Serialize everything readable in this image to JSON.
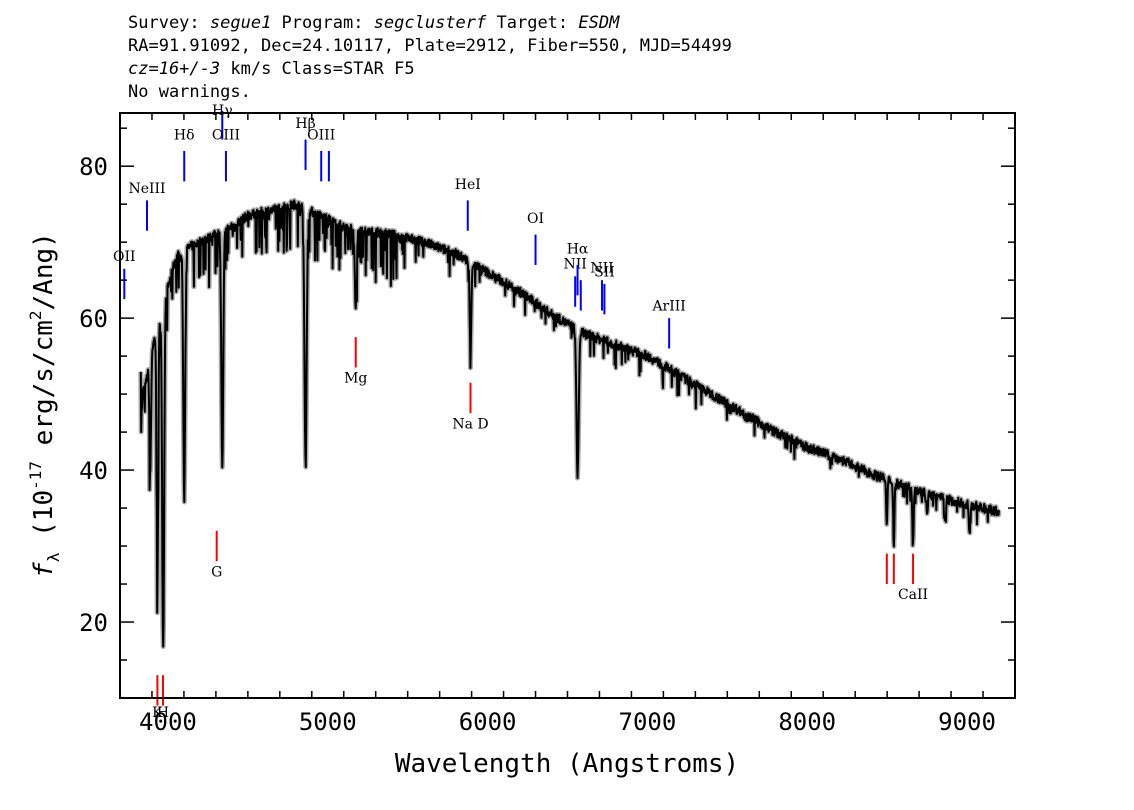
{
  "header": {
    "survey_label": "Survey: ",
    "survey": "segue1",
    "program_label": " Program: ",
    "program": "segclusterf",
    "target_label": " Target: ",
    "target": "ESDM",
    "line2": "RA=91.91092, Dec=24.10117, Plate=2912, Fiber=550, MJD=54499",
    "cz": "cz=16+/-3",
    "cz_rest": " km/s Class=STAR F5",
    "line4": "No warnings."
  },
  "chart_data": {
    "type": "line",
    "xlabel": "Wavelength (Angstroms)",
    "ylabel_parts": {
      "f": "f",
      "sub": "λ",
      "pre": " (10",
      "exp": "-17",
      "mid": " erg/s/cm",
      "exp2": "2",
      "post": "/Ang)"
    },
    "xlim": [
      3700,
      9300
    ],
    "ylim": [
      10,
      87
    ],
    "xticks": [
      4000,
      5000,
      6000,
      7000,
      8000,
      9000
    ],
    "yticks": [
      20,
      40,
      60,
      80
    ],
    "colors": {
      "spectrum": "#000000",
      "error": "#aaaaaa",
      "emission": "#0000ff",
      "absorption": "#ff0000"
    },
    "continuum": [
      [
        3830,
        59
      ],
      [
        3850,
        50
      ],
      [
        3900,
        56
      ],
      [
        3950,
        60
      ],
      [
        4000,
        64
      ],
      [
        4050,
        68
      ],
      [
        4100,
        69
      ],
      [
        4200,
        70
      ],
      [
        4300,
        71
      ],
      [
        4400,
        72
      ],
      [
        4500,
        73.5
      ],
      [
        4600,
        74
      ],
      [
        4700,
        74.5
      ],
      [
        4800,
        75
      ],
      [
        4900,
        74
      ],
      [
        5000,
        73
      ],
      [
        5100,
        72
      ],
      [
        5200,
        71.5
      ],
      [
        5400,
        71
      ],
      [
        5600,
        70
      ],
      [
        5800,
        68.5
      ],
      [
        6000,
        66
      ],
      [
        6200,
        63.5
      ],
      [
        6400,
        60.5
      ],
      [
        6600,
        58
      ],
      [
        6800,
        56.5
      ],
      [
        7000,
        55
      ],
      [
        7200,
        52.5
      ],
      [
        7400,
        50
      ],
      [
        7600,
        47.5
      ],
      [
        7800,
        45
      ],
      [
        8000,
        43
      ],
      [
        8200,
        41.5
      ],
      [
        8400,
        39.5
      ],
      [
        8600,
        38
      ],
      [
        8800,
        36.5
      ],
      [
        9000,
        35.5
      ],
      [
        9200,
        34.5
      ]
    ],
    "absorption_features": [
      [
        3835,
        9,
        5
      ],
      [
        3889,
        15,
        5
      ],
      [
        3934,
        32,
        5
      ],
      [
        3970,
        45,
        6
      ],
      [
        4102,
        32,
        6
      ],
      [
        4340,
        31,
        6
      ],
      [
        4861,
        33,
        7
      ],
      [
        5175,
        10,
        6
      ],
      [
        5893,
        12,
        5
      ],
      [
        6563,
        19,
        7
      ],
      [
        8498,
        6,
        4
      ],
      [
        8542,
        8,
        4
      ],
      [
        8662,
        7,
        4
      ],
      [
        8750,
        3,
        4
      ],
      [
        8863,
        3,
        4
      ],
      [
        9015,
        4,
        4
      ]
    ],
    "emission_lines": [
      {
        "label": "OII",
        "x": 3727,
        "y_top": 66.5,
        "y_bot": 62.5,
        "label_y": 67.5
      },
      {
        "label": "NeIII",
        "x": 3869,
        "y_top": 75.5,
        "y_bot": 71.5,
        "label_y": 76.5
      },
      {
        "label": "Hδ",
        "x": 4102,
        "y_top": 82.0,
        "y_bot": 78.0,
        "label_y": 83.5
      },
      {
        "label": "Hγ",
        "x": 4340,
        "y_top": 89.5,
        "y_bot": 83.5,
        "label_y": 90.0
      },
      {
        "label": "OIII",
        "x": 4363,
        "y_top": 82.0,
        "y_bot": 78.0,
        "label_y": 83.5
      },
      {
        "label": "Hβ",
        "x": 4861,
        "y_top": 83.5,
        "y_bot": 79.5,
        "label_y": 85.0
      },
      {
        "label": "OIII",
        "x": 4959,
        "y_top": 82.0,
        "y_bot": 78.0,
        "label_y": 83.5
      },
      {
        "label": "",
        "x": 5007,
        "y_top": 82.0,
        "y_bot": 78.0,
        "label_y": 0
      },
      {
        "label": "HeI",
        "x": 5876,
        "y_top": 75.5,
        "y_bot": 71.5,
        "label_y": 77.0
      },
      {
        "label": "OI",
        "x": 6300,
        "y_top": 71.0,
        "y_bot": 67.0,
        "label_y": 72.5
      },
      {
        "label": "NII",
        "x": 6548,
        "y_top": 65.5,
        "y_bot": 61.5,
        "label_y": 66.5
      },
      {
        "label": "Hα",
        "x": 6563,
        "y_top": 67.0,
        "y_bot": 63.0,
        "label_y": 68.5
      },
      {
        "label": "",
        "x": 6583,
        "y_top": 65.0,
        "y_bot": 61.0,
        "label_y": 0
      },
      {
        "label": "NII",
        "x": 6716,
        "y_top": 65.0,
        "y_bot": 61.0,
        "label_y": 66.0
      },
      {
        "label": "SII",
        "x": 6731,
        "y_top": 64.5,
        "y_bot": 60.5,
        "label_y": 65.5
      },
      {
        "label": "ArIII",
        "x": 7136,
        "y_top": 60.0,
        "y_bot": 56.0,
        "label_y": 61.0
      }
    ],
    "absorption_lines": [
      {
        "label": "K",
        "x": 3934,
        "y_top": 13.0,
        "y_bot": 9.0,
        "label_y": 7.5
      },
      {
        "label": "H",
        "x": 3969,
        "y_top": 13.0,
        "y_bot": 9.0,
        "label_y": 7.5
      },
      {
        "label": "G",
        "x": 4305,
        "y_top": 32.0,
        "y_bot": 28.0,
        "label_y": 26.0
      },
      {
        "label": "Mg",
        "x": 5175,
        "y_top": 57.5,
        "y_bot": 53.5,
        "label_y": 51.5
      },
      {
        "label": "Na D",
        "x": 5893,
        "y_top": 51.5,
        "y_bot": 47.5,
        "label_y": 45.5
      },
      {
        "label": "",
        "x": 8498,
        "y_top": 29.0,
        "y_bot": 25.0,
        "label_y": 0
      },
      {
        "label": "",
        "x": 8542,
        "y_top": 29.0,
        "y_bot": 25.0,
        "label_y": 0
      },
      {
        "label": "CaII",
        "x": 8662,
        "y_top": 29.0,
        "y_bot": 25.0,
        "label_y": 23.0
      }
    ]
  }
}
